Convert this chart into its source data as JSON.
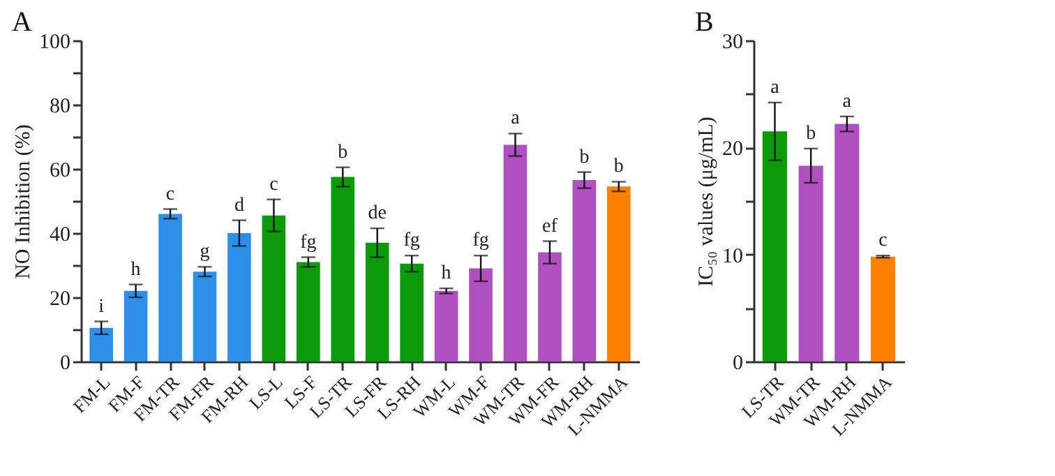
{
  "chart_data": [
    {
      "type": "bar",
      "title": "A",
      "ylabel": "NO Inhibition (%)",
      "categories": [
        "FM-L",
        "FM-F",
        "FM-TR",
        "FM-FR",
        "FM-RH",
        "LS-L",
        "LS-F",
        "LS-TR",
        "LS-FR",
        "LS-RH",
        "WM-L",
        "WM-F",
        "WM-TR",
        "WM-FR",
        "WM-RH",
        "L-NMMA"
      ],
      "values": [
        10.5,
        22,
        46,
        28,
        40,
        45.5,
        31,
        57.5,
        37,
        30.5,
        22,
        29,
        67.5,
        34,
        56.5,
        54.5
      ],
      "errors": [
        2,
        2,
        1.5,
        1.5,
        4,
        5,
        1.5,
        3,
        4.5,
        2.5,
        0.8,
        4,
        3.5,
        3.5,
        2.5,
        1.5
      ],
      "colors": [
        "#2e8fe8",
        "#2e8fe8",
        "#2e8fe8",
        "#2e8fe8",
        "#2e8fe8",
        "#0a9a0a",
        "#0a9a0a",
        "#0a9a0a",
        "#0a9a0a",
        "#0a9a0a",
        "#b04fc0",
        "#b04fc0",
        "#b04fc0",
        "#b04fc0",
        "#b04fc0",
        "#ff7f00"
      ],
      "ylim": [
        0,
        100
      ],
      "yticks": [
        0,
        {
          "value": 10,
          "label": null
        },
        20,
        {
          "value": 30,
          "label": null
        },
        40,
        {
          "value": 50,
          "label": null
        },
        60,
        {
          "value": 70,
          "label": null
        },
        80,
        {
          "value": 90,
          "label": null
        },
        100
      ],
      "annotations": [
        {
          "text": "i",
          "x": "FM-L",
          "y": 12.5
        },
        {
          "text": "h",
          "x": "FM-F",
          "y": 24
        },
        {
          "text": "c",
          "x": "FM-TR",
          "y": 47.5
        },
        {
          "text": "g",
          "x": "FM-FR",
          "y": 29.5
        },
        {
          "text": "d",
          "x": "FM-RH",
          "y": 44
        },
        {
          "text": "c",
          "x": "LS-L",
          "y": 50.5
        },
        {
          "text": "fg",
          "x": "LS-F",
          "y": 32.5
        },
        {
          "text": "b",
          "x": "LS-TR",
          "y": 60.5
        },
        {
          "text": "de",
          "x": "LS-FR",
          "y": 41.5
        },
        {
          "text": "fg",
          "x": "LS-RH",
          "y": 33
        },
        {
          "text": "h",
          "x": "WM-L",
          "y": 22.8
        },
        {
          "text": "fg",
          "x": "WM-F",
          "y": 33
        },
        {
          "text": "a",
          "x": "WM-TR",
          "y": 71
        },
        {
          "text": "ef",
          "x": "WM-FR",
          "y": 37.5
        },
        {
          "text": "b",
          "x": "WM-RH",
          "y": 59
        },
        {
          "text": "b",
          "x": "L-NMMA",
          "y": 56
        }
      ],
      "grid": false
    },
    {
      "type": "bar",
      "title": "B",
      "ylabel": "IC₅₀ values (μg/mL)",
      "categories": [
        "LS-TR",
        "WM-TR",
        "WM-RH",
        "L-NMMA"
      ],
      "values": [
        21.5,
        18.3,
        22.2,
        9.8
      ],
      "errors": [
        2.7,
        1.6,
        0.7,
        0.1
      ],
      "colors": [
        "#0a9a0a",
        "#b04fc0",
        "#b04fc0",
        "#ff7f00"
      ],
      "ylim": [
        0,
        30
      ],
      "yticks": [
        0,
        {
          "value": 5,
          "label": null
        },
        10,
        {
          "value": 15,
          "label": null
        },
        20,
        {
          "value": 25,
          "label": null
        },
        30
      ],
      "annotations": [
        {
          "text": "a",
          "x": "LS-TR",
          "y": 24.2
        },
        {
          "text": "b",
          "x": "WM-TR",
          "y": 19.9
        },
        {
          "text": "a",
          "x": "WM-RH",
          "y": 22.9
        },
        {
          "text": "c",
          "x": "L-NMMA",
          "y": 9.9
        }
      ],
      "grid": false
    }
  ]
}
